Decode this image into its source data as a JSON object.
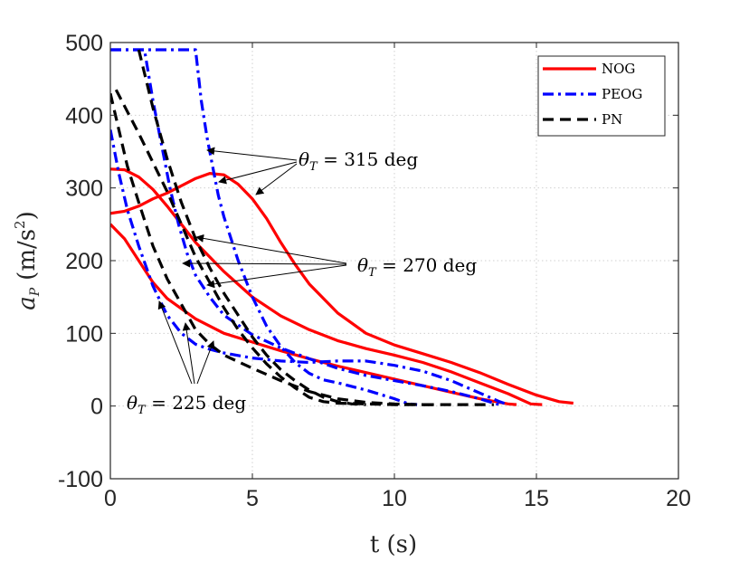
{
  "chart_data": {
    "type": "line",
    "title": "",
    "xlabel": "t (s)",
    "ylabel": "a_P (m/s^2)",
    "ylabel_parts": {
      "symbol": "a",
      "sub": "P",
      "unit": "(m/s",
      "sup": "2",
      "close": ")"
    },
    "xlim": [
      0,
      20
    ],
    "ylim": [
      -100,
      500
    ],
    "xticks": [
      0,
      5,
      10,
      15,
      20
    ],
    "yticks": [
      -100,
      0,
      100,
      200,
      300,
      400,
      500
    ],
    "xtick_labels": [
      "0",
      "5",
      "10",
      "15",
      "20"
    ],
    "ytick_labels": [
      "-100",
      "0",
      "100",
      "200",
      "300",
      "400",
      "500"
    ],
    "grid": true,
    "legend_position": "top-right",
    "legend": [
      {
        "name": "NOG",
        "color": "#ff0000",
        "dash": "solid"
      },
      {
        "name": "PEOG",
        "color": "#0000ff",
        "dash": "dashdot"
      },
      {
        "name": "PN",
        "color": "#000000",
        "dash": "dashed"
      }
    ],
    "series": [
      {
        "name": "NOG",
        "case": "225 deg",
        "color": "#ff0000",
        "dash": "solid",
        "points": [
          [
            0,
            250
          ],
          [
            0.5,
            230
          ],
          [
            1,
            200
          ],
          [
            1.5,
            170
          ],
          [
            2,
            148
          ],
          [
            3,
            120
          ],
          [
            4,
            100
          ],
          [
            5,
            88
          ],
          [
            6,
            76
          ],
          [
            7,
            65
          ],
          [
            8,
            55
          ],
          [
            9,
            46
          ],
          [
            10,
            37
          ],
          [
            11,
            28
          ],
          [
            12,
            19
          ],
          [
            13,
            10
          ],
          [
            14,
            3
          ],
          [
            14.3,
            2
          ]
        ]
      },
      {
        "name": "NOG",
        "case": "270 deg",
        "color": "#ff0000",
        "dash": "solid",
        "points": [
          [
            0,
            326
          ],
          [
            0.5,
            325
          ],
          [
            1,
            315
          ],
          [
            1.5,
            298
          ],
          [
            2,
            275
          ],
          [
            2.5,
            250
          ],
          [
            3,
            225
          ],
          [
            3.5,
            205
          ],
          [
            4,
            185
          ],
          [
            5,
            150
          ],
          [
            6,
            124
          ],
          [
            7,
            105
          ],
          [
            8,
            90
          ],
          [
            9,
            79
          ],
          [
            10,
            70
          ],
          [
            11,
            60
          ],
          [
            12,
            47
          ],
          [
            13,
            32
          ],
          [
            14,
            17
          ],
          [
            14.8,
            3
          ],
          [
            15.2,
            2
          ]
        ]
      },
      {
        "name": "NOG",
        "case": "315 deg",
        "color": "#ff0000",
        "dash": "solid",
        "points": [
          [
            0,
            265
          ],
          [
            0.5,
            268
          ],
          [
            1,
            275
          ],
          [
            1.5,
            285
          ],
          [
            2,
            293
          ],
          [
            2.5,
            303
          ],
          [
            3,
            313
          ],
          [
            3.5,
            320
          ],
          [
            4,
            318
          ],
          [
            4.5,
            305
          ],
          [
            5,
            285
          ],
          [
            5.5,
            258
          ],
          [
            6,
            225
          ],
          [
            6.5,
            195
          ],
          [
            7,
            168
          ],
          [
            8,
            128
          ],
          [
            9,
            100
          ],
          [
            10,
            84
          ],
          [
            11,
            72
          ],
          [
            12,
            60
          ],
          [
            13,
            46
          ],
          [
            14,
            30
          ],
          [
            15,
            15
          ],
          [
            15.8,
            6
          ],
          [
            16.3,
            4
          ]
        ]
      },
      {
        "name": "PEOG",
        "case": "225 deg",
        "color": "#0000ff",
        "dash": "dashdot",
        "points": [
          [
            0,
            380
          ],
          [
            0.3,
            320
          ],
          [
            0.6,
            270
          ],
          [
            1,
            220
          ],
          [
            1.5,
            165
          ],
          [
            2,
            125
          ],
          [
            2.5,
            100
          ],
          [
            3,
            85
          ],
          [
            3.5,
            78
          ],
          [
            4,
            73
          ],
          [
            5,
            66
          ],
          [
            6,
            62
          ],
          [
            7,
            60
          ],
          [
            8,
            62
          ],
          [
            9,
            62
          ],
          [
            10,
            56
          ],
          [
            11,
            48
          ],
          [
            12,
            35
          ],
          [
            13,
            18
          ],
          [
            13.7,
            6
          ],
          [
            14,
            2
          ]
        ]
      },
      {
        "name": "PEOG",
        "case": "270 deg",
        "color": "#0000ff",
        "dash": "dashdot",
        "points": [
          [
            0,
            490
          ],
          [
            1.2,
            490
          ],
          [
            1.5,
            420
          ],
          [
            1.8,
            360
          ],
          [
            2.1,
            300
          ],
          [
            2.4,
            250
          ],
          [
            2.7,
            210
          ],
          [
            3,
            180
          ],
          [
            3.5,
            150
          ],
          [
            4,
            125
          ],
          [
            5,
            98
          ],
          [
            6,
            80
          ],
          [
            7,
            65
          ],
          [
            8,
            52
          ],
          [
            9,
            42
          ],
          [
            10,
            35
          ],
          [
            11,
            28
          ],
          [
            12,
            20
          ],
          [
            13,
            10
          ],
          [
            13.6,
            3
          ],
          [
            13.8,
            2
          ]
        ]
      },
      {
        "name": "PEOG",
        "case": "315 deg",
        "color": "#0000ff",
        "dash": "dashdot",
        "points": [
          [
            0,
            490
          ],
          [
            3,
            490
          ],
          [
            3.2,
            420
          ],
          [
            3.4,
            370
          ],
          [
            3.6,
            330
          ],
          [
            3.8,
            290
          ],
          [
            4,
            260
          ],
          [
            4.5,
            200
          ],
          [
            5,
            150
          ],
          [
            5.5,
            110
          ],
          [
            6,
            82
          ],
          [
            6.5,
            60
          ],
          [
            7,
            45
          ],
          [
            7.5,
            36
          ],
          [
            8,
            32
          ],
          [
            9,
            22
          ],
          [
            10,
            10
          ],
          [
            10.5,
            3
          ],
          [
            10.8,
            2
          ]
        ]
      },
      {
        "name": "PN",
        "case": "225 deg",
        "color": "#000000",
        "dash": "dashed",
        "points": [
          [
            0,
            430
          ],
          [
            0.3,
            380
          ],
          [
            0.6,
            330
          ],
          [
            1,
            280
          ],
          [
            1.5,
            220
          ],
          [
            2,
            175
          ],
          [
            2.5,
            140
          ],
          [
            3,
            105
          ],
          [
            3.5,
            85
          ],
          [
            4,
            70
          ],
          [
            5,
            52
          ],
          [
            6,
            35
          ],
          [
            7,
            20
          ],
          [
            8,
            10
          ],
          [
            9,
            5
          ],
          [
            10,
            3
          ],
          [
            11,
            2
          ],
          [
            12,
            2
          ],
          [
            13,
            2
          ],
          [
            13.5,
            2
          ]
        ]
      },
      {
        "name": "PN",
        "case": "270 deg",
        "color": "#000000",
        "dash": "dashed",
        "points": [
          [
            0.2,
            435
          ],
          [
            0.6,
            405
          ],
          [
            1,
            375
          ],
          [
            1.5,
            335
          ],
          [
            2,
            295
          ],
          [
            2.5,
            250
          ],
          [
            3,
            205
          ],
          [
            3.5,
            170
          ],
          [
            4,
            135
          ],
          [
            4.5,
            105
          ],
          [
            5,
            80
          ],
          [
            5.5,
            58
          ],
          [
            6,
            40
          ],
          [
            6.5,
            25
          ],
          [
            7,
            12
          ],
          [
            7.5,
            6
          ],
          [
            8,
            4
          ],
          [
            9,
            3
          ],
          [
            10,
            2
          ],
          [
            11,
            2
          ],
          [
            11.5,
            2
          ]
        ]
      },
      {
        "name": "PN",
        "case": "315 deg",
        "color": "#000000",
        "dash": "dashed",
        "points": [
          [
            1,
            490
          ],
          [
            1.5,
            410
          ],
          [
            2,
            340
          ],
          [
            2.5,
            280
          ],
          [
            3,
            230
          ],
          [
            3.5,
            190
          ],
          [
            4,
            155
          ],
          [
            4.5,
            125
          ],
          [
            5,
            95
          ],
          [
            5.5,
            70
          ],
          [
            6,
            50
          ],
          [
            6.5,
            35
          ],
          [
            7,
            22
          ],
          [
            7.5,
            12
          ],
          [
            8,
            6
          ],
          [
            8.5,
            3
          ],
          [
            9,
            2
          ]
        ]
      }
    ],
    "annotations": [
      {
        "id": "a315",
        "symbol": "θ",
        "sub": "T",
        "text": " = 315 deg"
      },
      {
        "id": "a270",
        "symbol": "θ",
        "sub": "T",
        "text": " = 270 deg"
      },
      {
        "id": "a225",
        "symbol": "θ",
        "sub": "T",
        "text": " = 225 deg"
      }
    ]
  }
}
